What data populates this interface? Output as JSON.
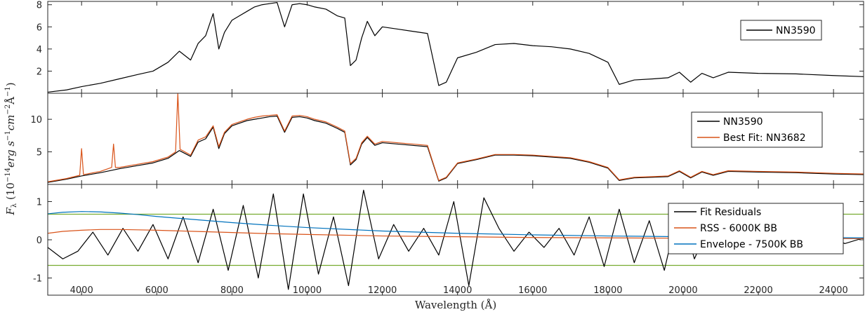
{
  "chart_data": {
    "type": "line",
    "xlabel": "Wavelength (Å)",
    "ylabel_parts": {
      "main": "F",
      "sub": "λ",
      "open": " (10",
      "exp1": "−14",
      "erg": "erg s",
      "exp2": "−1",
      "cm": "cm",
      "exp3": "−2",
      "ang": "Å",
      "exp4": "−1",
      "close": ")"
    },
    "xlim": [
      3100,
      24800
    ],
    "x_ticks": [
      "4000",
      "6000",
      "8000",
      "10000",
      "12000",
      "14000",
      "16000",
      "18000",
      "20000",
      "22000",
      "24000"
    ],
    "panels": [
      {
        "ylim": [
          0,
          8.3
        ],
        "y_ticks": [
          "2",
          "4",
          "6",
          "8"
        ],
        "legend": [
          "NN3590"
        ],
        "series": [
          {
            "name": "NN3590",
            "color": "#000000",
            "x": [
              3100,
              3600,
              4000,
              4500,
              5000,
              5500,
              5900,
              6300,
              6600,
              6900,
              7100,
              7300,
              7500,
              7650,
              7800,
              8000,
              8200,
              8400,
              8600,
              8800,
              9000,
              9200,
              9400,
              9600,
              9800,
              10000,
              10200,
              10500,
              10800,
              11000,
              11150,
              11300,
              11450,
              11600,
              11800,
              12000,
              12400,
              12800,
              13200,
              13500,
              13700,
              14000,
              14500,
              15000,
              15500,
              16000,
              16500,
              17000,
              17500,
              18000,
              18300,
              18700,
              19200,
              19600,
              19900,
              20200,
              20500,
              20800,
              21200,
              22000,
              23000,
              24000,
              24800
            ],
            "y": [
              0.1,
              0.3,
              0.6,
              0.9,
              1.3,
              1.7,
              2.0,
              2.8,
              3.8,
              3.0,
              4.5,
              5.2,
              7.2,
              4.0,
              5.5,
              6.6,
              7.0,
              7.4,
              7.8,
              8.0,
              8.1,
              8.2,
              6.0,
              8.0,
              8.1,
              8.0,
              7.8,
              7.6,
              7.0,
              6.8,
              2.5,
              3.0,
              5.0,
              6.5,
              5.2,
              6.0,
              5.8,
              5.6,
              5.4,
              0.7,
              1.0,
              3.2,
              3.7,
              4.4,
              4.5,
              4.3,
              4.2,
              4.0,
              3.6,
              2.8,
              0.8,
              1.2,
              1.3,
              1.4,
              1.9,
              1.0,
              1.8,
              1.4,
              1.9,
              1.8,
              1.75,
              1.6,
              1.5
            ]
          }
        ]
      },
      {
        "ylim": [
          0,
          14
        ],
        "y_ticks": [
          "5",
          "10"
        ],
        "legend": [
          "NN3590",
          "Best Fit: NN3682"
        ],
        "series": [
          {
            "name": "NN3590",
            "color": "#000000",
            "x": [
              3100,
              3600,
              4000,
              4500,
              5000,
              5500,
              5900,
              6300,
              6600,
              6900,
              7100,
              7300,
              7500,
              7650,
              7800,
              8000,
              8200,
              8400,
              8600,
              8800,
              9000,
              9200,
              9400,
              9600,
              9800,
              10000,
              10200,
              10500,
              10800,
              11000,
              11150,
              11300,
              11450,
              11600,
              11800,
              12000,
              12400,
              12800,
              13200,
              13500,
              13700,
              14000,
              14500,
              15000,
              15500,
              16000,
              16500,
              17000,
              17500,
              18000,
              18300,
              18700,
              19200,
              19600,
              19900,
              20200,
              20500,
              20800,
              21200,
              22000,
              23000,
              24000,
              24800
            ],
            "y": [
              0.3,
              0.8,
              1.3,
              1.8,
              2.4,
              2.9,
              3.3,
              4.0,
              5.2,
              4.3,
              6.5,
              7.0,
              8.8,
              5.5,
              7.8,
              9.0,
              9.4,
              9.8,
              10.0,
              10.2,
              10.4,
              10.5,
              8.0,
              10.3,
              10.4,
              10.2,
              9.8,
              9.4,
              8.6,
              8.0,
              3.0,
              3.8,
              6.2,
              7.2,
              6.0,
              6.4,
              6.2,
              6.0,
              5.8,
              0.5,
              1.0,
              3.2,
              3.8,
              4.5,
              4.5,
              4.4,
              4.2,
              4.0,
              3.4,
              2.5,
              0.6,
              1.0,
              1.1,
              1.2,
              2.0,
              1.0,
              1.9,
              1.4,
              2.0,
              1.9,
              1.8,
              1.6,
              1.5
            ]
          },
          {
            "name": "Best Fit: NN3682",
            "color": "#D95319",
            "x": [
              3100,
              3600,
              3950,
              4000,
              4050,
              4500,
              4800,
              4850,
              4900,
              5000,
              5500,
              5900,
              6300,
              6500,
              6560,
              6620,
              6900,
              7100,
              7300,
              7500,
              7650,
              7800,
              8000,
              8200,
              8400,
              8600,
              8800,
              9000,
              9200,
              9400,
              9600,
              9800,
              10000,
              10200,
              10500,
              10800,
              11000,
              11150,
              11300,
              11450,
              11600,
              11800,
              12000,
              12400,
              12800,
              13200,
              13500,
              13700,
              14000,
              14500,
              15000,
              15500,
              16000,
              16500,
              17000,
              17500,
              18000,
              18300,
              18700,
              19200,
              19600,
              19900,
              20200,
              20500,
              20800,
              21200,
              22000,
              23000,
              24000,
              24800
            ],
            "y": [
              0.4,
              0.9,
              1.4,
              5.5,
              1.5,
              2.0,
              2.6,
              6.2,
              2.6,
              2.6,
              3.1,
              3.5,
              4.2,
              5.0,
              14.0,
              5.4,
              4.5,
              6.8,
              7.3,
              9.0,
              5.8,
              8.0,
              9.2,
              9.6,
              10.0,
              10.3,
              10.5,
              10.6,
              10.7,
              8.2,
              10.5,
              10.6,
              10.4,
              10.0,
              9.6,
              8.8,
              8.2,
              3.2,
              4.0,
              6.4,
              7.4,
              6.2,
              6.6,
              6.4,
              6.2,
              6.0,
              0.6,
              1.1,
              3.3,
              3.9,
              4.6,
              4.6,
              4.5,
              4.3,
              4.1,
              3.5,
              2.6,
              0.7,
              1.1,
              1.2,
              1.3,
              2.1,
              1.1,
              2.0,
              1.5,
              2.1,
              2.0,
              1.9,
              1.7,
              1.6
            ]
          }
        ]
      },
      {
        "ylim": [
          -1.45,
          1.45
        ],
        "y_ticks": [
          "-1",
          "0",
          "1"
        ],
        "legend": [
          "Fit Residuals",
          "RSS - 6000K BB",
          "Envelope - 7500K BB"
        ],
        "hlines": [
          0.67,
          -0.67
        ],
        "hline_color": "#77AC30",
        "series": [
          {
            "name": "Fit Residuals",
            "color": "#000000",
            "x": [
              3100,
              3500,
              3900,
              4300,
              4700,
              5100,
              5500,
              5900,
              6300,
              6700,
              7100,
              7500,
              7900,
              8300,
              8700,
              9100,
              9500,
              9900,
              10300,
              10700,
              11100,
              11500,
              11900,
              12300,
              12700,
              13100,
              13500,
              13900,
              14300,
              14700,
              15100,
              15500,
              15900,
              16300,
              16700,
              17100,
              17500,
              17900,
              18300,
              18700,
              19100,
              19500,
              19900,
              20300,
              20700,
              21100,
              21500,
              21900,
              22300,
              22700,
              23100,
              23500,
              23900,
              24300,
              24800
            ],
            "y": [
              -0.2,
              -0.5,
              -0.3,
              0.2,
              -0.4,
              0.3,
              -0.3,
              0.4,
              -0.5,
              0.6,
              -0.6,
              0.8,
              -0.8,
              0.9,
              -1.0,
              1.2,
              -1.3,
              1.2,
              -0.9,
              0.6,
              -1.2,
              1.3,
              -0.5,
              0.4,
              -0.3,
              0.3,
              -0.4,
              1.0,
              -1.2,
              1.1,
              0.3,
              -0.3,
              0.2,
              -0.2,
              0.3,
              -0.4,
              0.6,
              -0.7,
              0.8,
              -0.6,
              0.5,
              -0.8,
              0.9,
              -0.5,
              0.4,
              -0.2,
              0.1,
              -0.1,
              0.15,
              -0.1,
              0.1,
              -0.1,
              0.1,
              -0.1,
              0.05
            ]
          },
          {
            "name": "RSS - 6000K BB",
            "color": "#D95319",
            "x": [
              3100,
              3500,
              4000,
              4500,
              5000,
              5500,
              6000,
              7000,
              8000,
              9000,
              10000,
              12000,
              14000,
              16000,
              18000,
              20000,
              22000,
              24800
            ],
            "y": [
              0.17,
              0.22,
              0.25,
              0.27,
              0.27,
              0.26,
              0.25,
              0.22,
              0.19,
              0.16,
              0.14,
              0.1,
              0.08,
              0.06,
              0.05,
              0.04,
              0.035,
              0.03
            ]
          },
          {
            "name": "Envelope - 7500K BB",
            "color": "#0072BD",
            "x": [
              3100,
              3500,
              4000,
              4500,
              5000,
              5500,
              6000,
              7000,
              8000,
              9000,
              10000,
              12000,
              14000,
              16000,
              18000,
              20000,
              22000,
              24800
            ],
            "y": [
              0.68,
              0.72,
              0.74,
              0.73,
              0.7,
              0.66,
              0.61,
              0.53,
              0.45,
              0.38,
              0.32,
              0.23,
              0.17,
              0.13,
              0.1,
              0.08,
              0.07,
              0.05
            ]
          }
        ]
      }
    ]
  }
}
